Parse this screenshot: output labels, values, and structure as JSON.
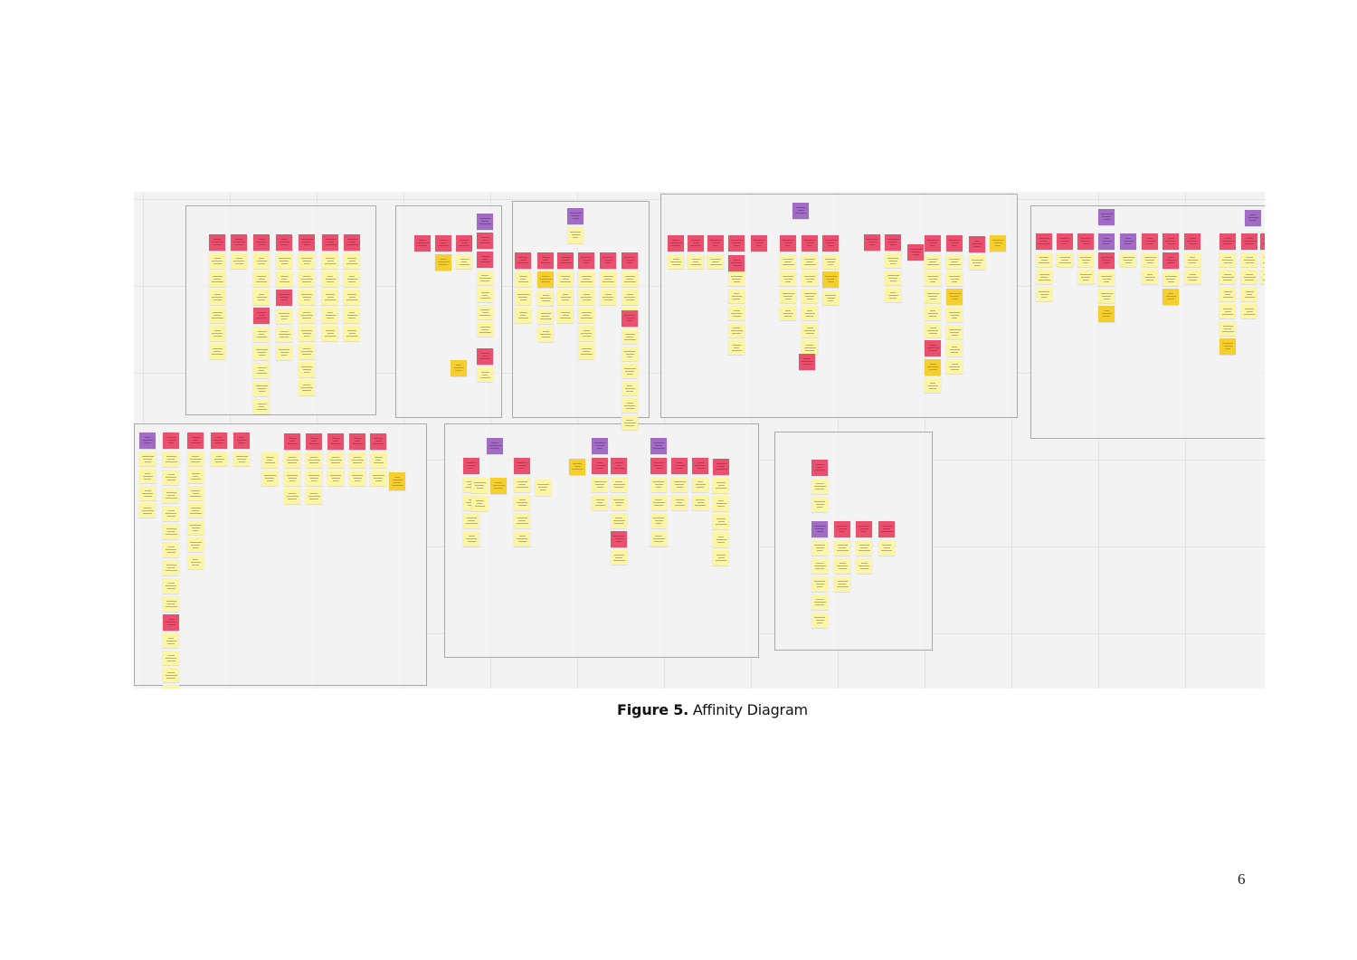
{
  "figure": {
    "caption_label": "Figure 5",
    "caption_separator": ".",
    "caption_text": " Affinity Diagram"
  },
  "page_number": "6",
  "sticky_colors": {
    "note": "#fbf5a4",
    "theme": "#e8506e",
    "group": "#a06cc4",
    "highlight": "#f4cf2e",
    "board": "#f3f3f3",
    "frame_border": "#a9a9a9"
  },
  "clusters": 8
}
